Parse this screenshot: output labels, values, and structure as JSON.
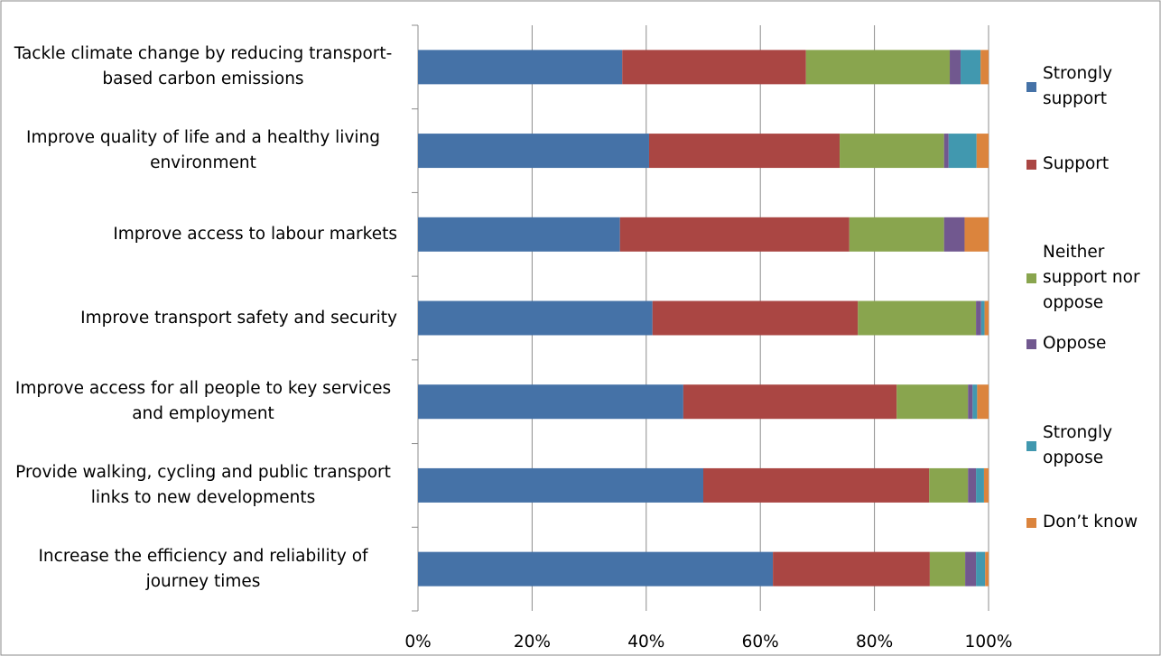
{
  "chart_data": {
    "type": "stacked-horizontal-bar",
    "categories": [
      "Tackle climate change by reducing transport-based carbon emissions",
      "Improve quality of life and a healthy living environment",
      "Improve access to labour markets",
      "Improve transport safety and security",
      "Improve access for all people to key services and employment",
      "Provide walking, cycling and public transport links to new developments",
      "Increase the efficiency and reliability of journey times"
    ],
    "series": [
      {
        "name": "Strongly support",
        "color": "#4572a7",
        "values": [
          35.8,
          40.5,
          35.4,
          41.1,
          46.5,
          50.0,
          62.2
        ]
      },
      {
        "name": "Support",
        "color": "#aa4643",
        "values": [
          32.2,
          33.4,
          40.2,
          36.0,
          37.4,
          39.6,
          27.5
        ]
      },
      {
        "name": "Neither support nor oppose",
        "color": "#89a54e",
        "values": [
          25.2,
          18.3,
          16.6,
          20.7,
          12.5,
          6.8,
          6.2
        ]
      },
      {
        "name": "Oppose",
        "color": "#71588f",
        "values": [
          1.9,
          0.8,
          3.6,
          0.9,
          0.8,
          1.4,
          1.9
        ]
      },
      {
        "name": "Strongly oppose",
        "color": "#4198af",
        "values": [
          3.5,
          4.9,
          0,
          0.6,
          0.8,
          1.4,
          1.6
        ]
      },
      {
        "name": "Don’t know",
        "color": "#db843d",
        "values": [
          1.4,
          2.1,
          4.2,
          0.7,
          2.0,
          0.8,
          0.6
        ]
      }
    ],
    "xlim": [
      0,
      100
    ],
    "xticks": [
      {
        "value": 0,
        "label": "0%"
      },
      {
        "value": 20,
        "label": "20%"
      },
      {
        "value": 40,
        "label": "40%"
      },
      {
        "value": 60,
        "label": "60%"
      },
      {
        "value": 80,
        "label": "80%"
      },
      {
        "value": 100,
        "label": "100%"
      }
    ],
    "grid": true,
    "legend": "right"
  }
}
